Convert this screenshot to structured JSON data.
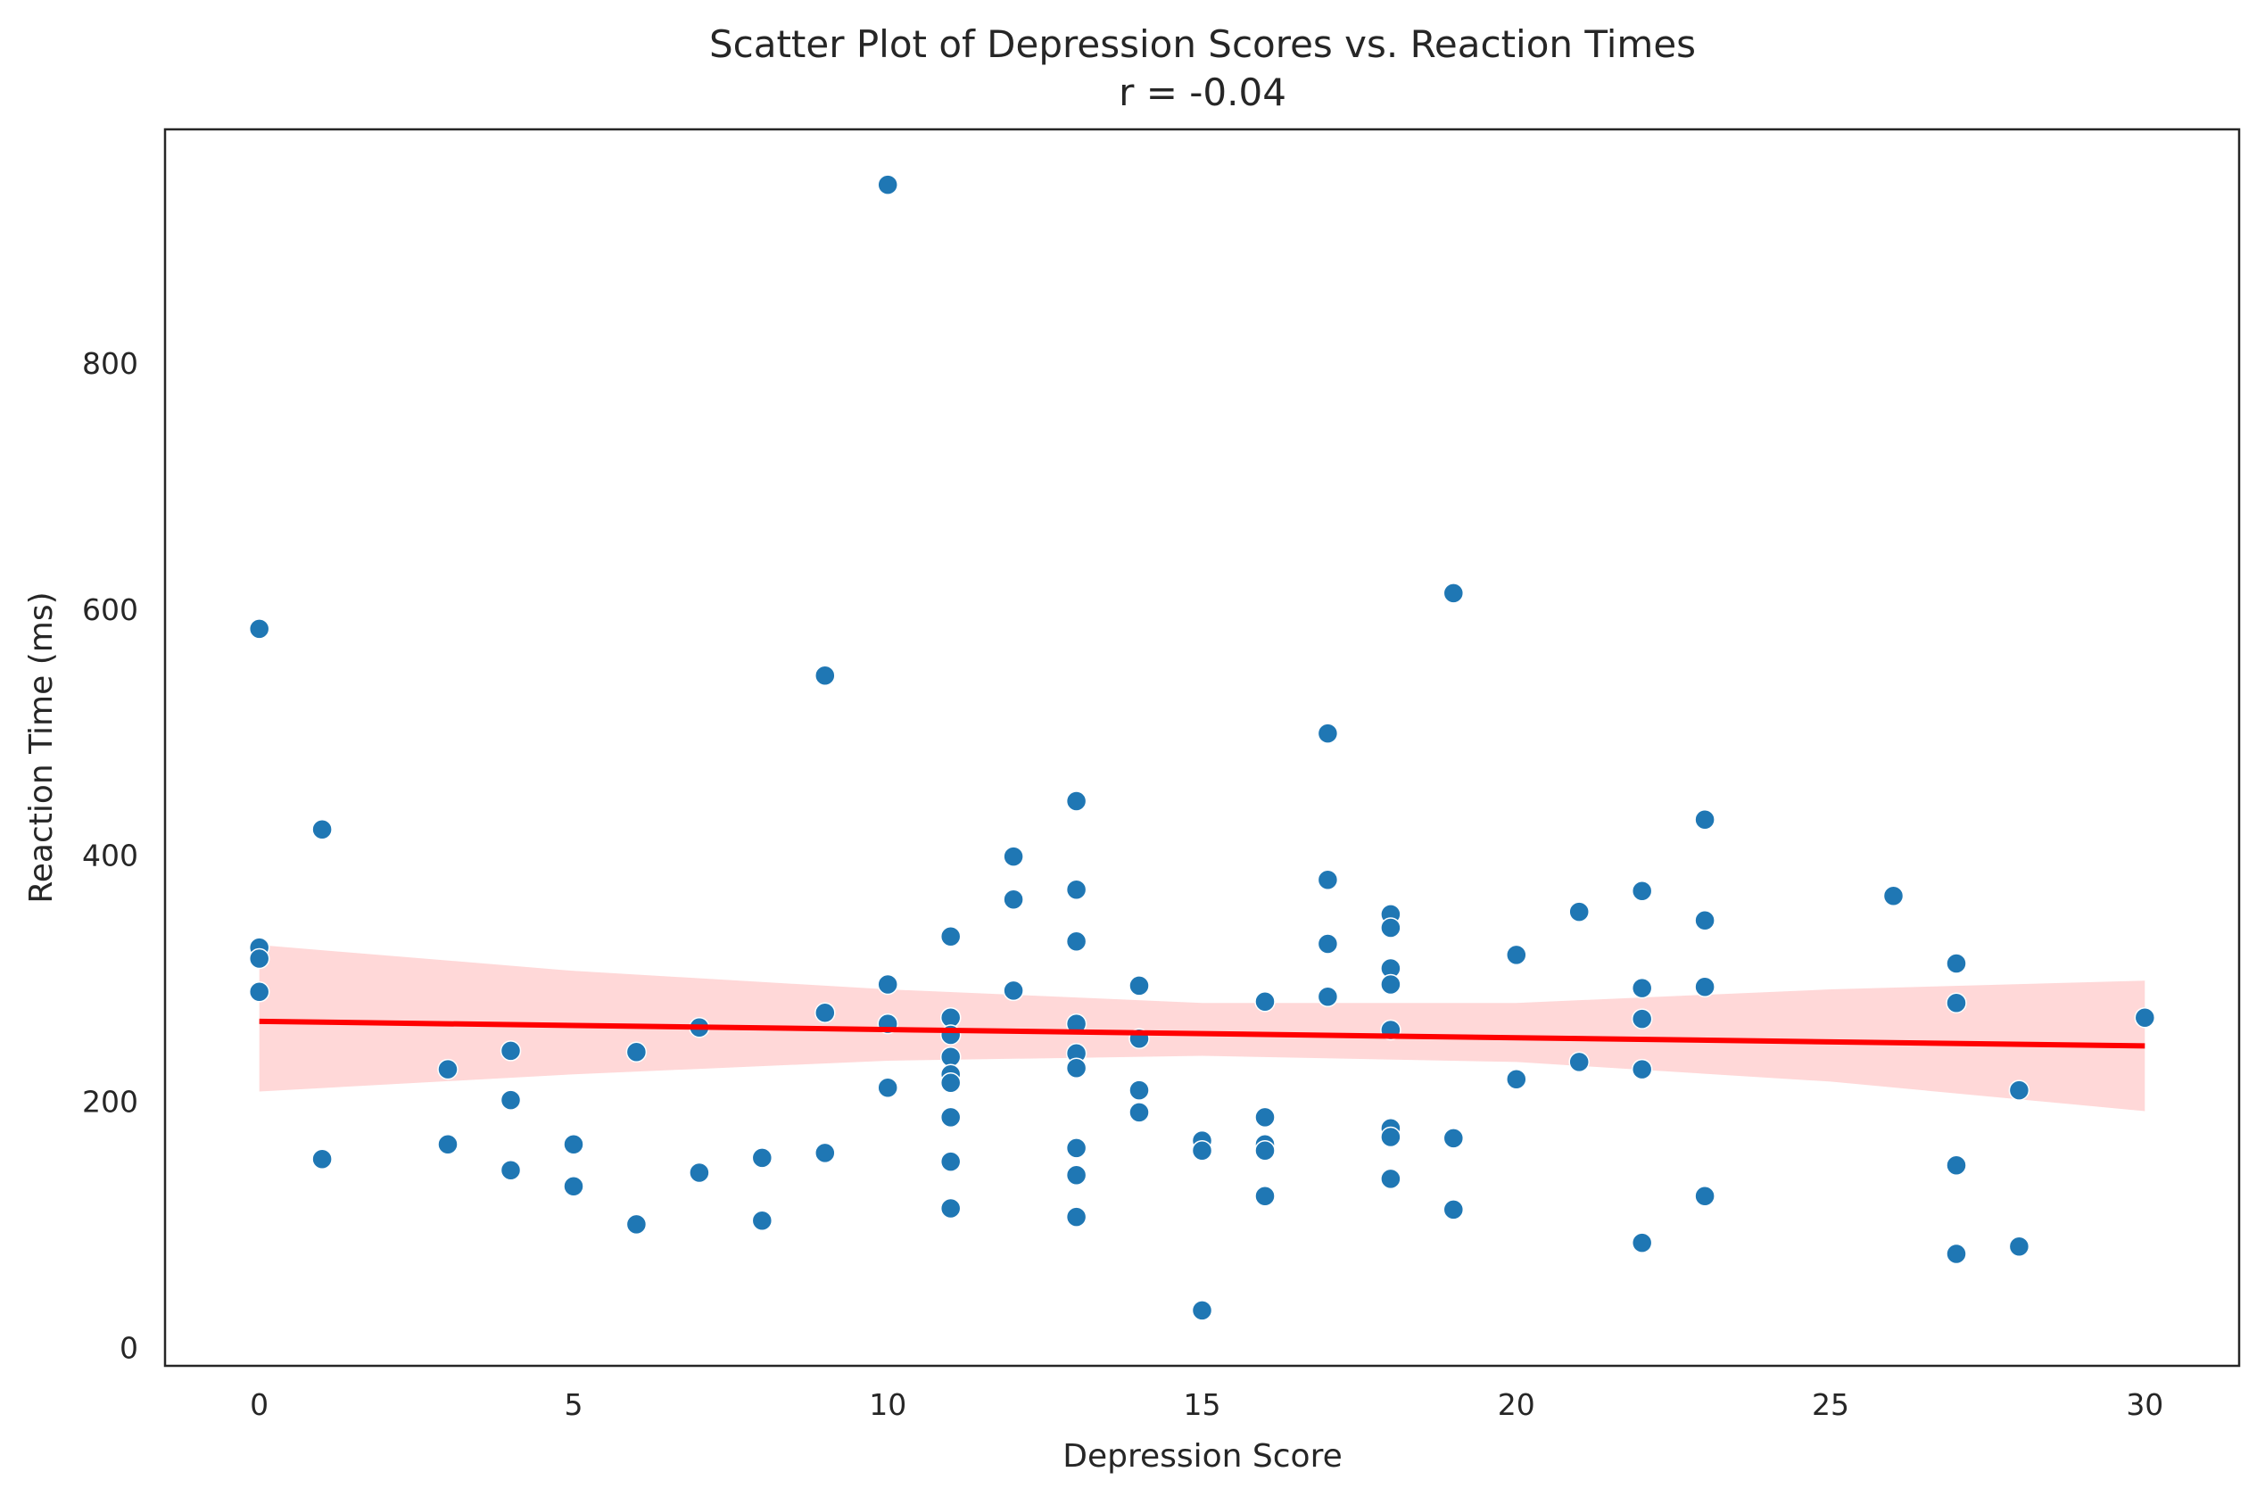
{
  "chart_data": {
    "type": "scatter",
    "title": "Scatter Plot of Depression Scores vs. Reaction Times",
    "subtitle": "r = -0.04",
    "xlabel": "Depression Score",
    "ylabel": "Reaction Time (ms)",
    "xlim": [
      -1.5,
      31.5
    ],
    "ylim": [
      -15,
      990
    ],
    "xticks": [
      0,
      5,
      10,
      15,
      20,
      25,
      30
    ],
    "xtick_labels": [
      "0",
      "5",
      "10",
      "15",
      "20",
      "25",
      "30"
    ],
    "yticks": [
      0,
      200,
      400,
      600,
      800
    ],
    "ytick_labels": [
      "0",
      "200",
      "400",
      "600",
      "800"
    ],
    "grid": false,
    "colors": {
      "points": "#1f77b4",
      "point_edge": "#ffffff",
      "fit_line": "#ff0000",
      "ci_band": "#ffd6d6",
      "axes": "#262626"
    },
    "points": [
      [
        0,
        584
      ],
      [
        0,
        325
      ],
      [
        0,
        316
      ],
      [
        0,
        289
      ],
      [
        1,
        421
      ],
      [
        1,
        153
      ],
      [
        3,
        226
      ],
      [
        3,
        165
      ],
      [
        4,
        241
      ],
      [
        4,
        201
      ],
      [
        4,
        144
      ],
      [
        5,
        165
      ],
      [
        5,
        131
      ],
      [
        6,
        240
      ],
      [
        6,
        100
      ],
      [
        7,
        260
      ],
      [
        7,
        142
      ],
      [
        8,
        154
      ],
      [
        8,
        103
      ],
      [
        9,
        546
      ],
      [
        9,
        272
      ],
      [
        9,
        158
      ],
      [
        10,
        945
      ],
      [
        10,
        295
      ],
      [
        10,
        263
      ],
      [
        10,
        211
      ],
      [
        11,
        334
      ],
      [
        11,
        268
      ],
      [
        11,
        254
      ],
      [
        11,
        236
      ],
      [
        11,
        222
      ],
      [
        11,
        215
      ],
      [
        11,
        187
      ],
      [
        11,
        151
      ],
      [
        11,
        113
      ],
      [
        12,
        399
      ],
      [
        12,
        364
      ],
      [
        12,
        290
      ],
      [
        13,
        444
      ],
      [
        13,
        372
      ],
      [
        13,
        330
      ],
      [
        13,
        263
      ],
      [
        13,
        239
      ],
      [
        13,
        227
      ],
      [
        13,
        162
      ],
      [
        13,
        140
      ],
      [
        13,
        106
      ],
      [
        14,
        294
      ],
      [
        14,
        251
      ],
      [
        14,
        209
      ],
      [
        14,
        191
      ],
      [
        15,
        168
      ],
      [
        15,
        160
      ],
      [
        15,
        30
      ],
      [
        16,
        281
      ],
      [
        16,
        187
      ],
      [
        16,
        165
      ],
      [
        16,
        160
      ],
      [
        16,
        123
      ],
      [
        17,
        499
      ],
      [
        17,
        380
      ],
      [
        17,
        328
      ],
      [
        17,
        285
      ],
      [
        18,
        352
      ],
      [
        18,
        341
      ],
      [
        18,
        308
      ],
      [
        18,
        295
      ],
      [
        18,
        258
      ],
      [
        18,
        178
      ],
      [
        18,
        171
      ],
      [
        18,
        137
      ],
      [
        19,
        613
      ],
      [
        19,
        170
      ],
      [
        19,
        112
      ],
      [
        20,
        319
      ],
      [
        20,
        218
      ],
      [
        21,
        354
      ],
      [
        21,
        232
      ],
      [
        22,
        371
      ],
      [
        22,
        292
      ],
      [
        22,
        267
      ],
      [
        22,
        226
      ],
      [
        22,
        85
      ],
      [
        23,
        429
      ],
      [
        23,
        347
      ],
      [
        23,
        293
      ],
      [
        23,
        123
      ],
      [
        26,
        367
      ],
      [
        27,
        312
      ],
      [
        27,
        280
      ],
      [
        27,
        148
      ],
      [
        27,
        76
      ],
      [
        28,
        209
      ],
      [
        28,
        82
      ],
      [
        30,
        268
      ]
    ],
    "regression": {
      "x_start": 0,
      "x_end": 30,
      "y_start": 265,
      "y_end": 245
    },
    "confidence_band": {
      "x": [
        0,
        5,
        10,
        15,
        20,
        25,
        30
      ],
      "lower": [
        208,
        222,
        233,
        237,
        232,
        216,
        192
      ],
      "upper": [
        327,
        306,
        291,
        280,
        280,
        291,
        298
      ]
    }
  }
}
